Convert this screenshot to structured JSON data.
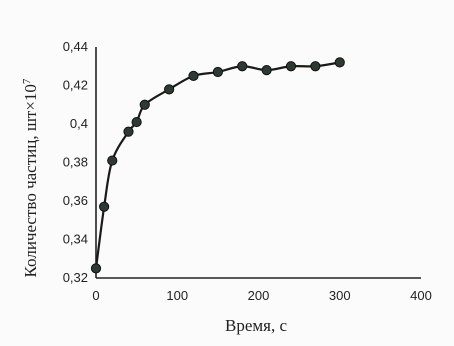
{
  "chart_data": {
    "type": "line",
    "title": "",
    "xlabel": "Время, с",
    "ylabel": "Количество частиц, шт×10",
    "ylabel_superscript": "7",
    "xlim": [
      0,
      400
    ],
    "ylim": [
      0.32,
      0.44
    ],
    "x_ticks": [
      0,
      100,
      200,
      300,
      400
    ],
    "y_ticks": [
      0.32,
      0.34,
      0.36,
      0.38,
      0.4,
      0.42,
      0.44
    ],
    "x_tick_labels": [
      "0",
      "100",
      "200",
      "300",
      "400"
    ],
    "y_tick_labels": [
      "0,32",
      "0,34",
      "0,36",
      "0,38",
      "0,4",
      "0,42",
      "0,44"
    ],
    "grid": false,
    "series": [
      {
        "marker_color": "#2c3a33",
        "x": [
          0,
          10,
          20,
          40,
          50,
          60,
          90,
          120,
          150,
          180,
          210,
          240,
          270,
          300
        ],
        "y": [
          0.325,
          0.357,
          0.381,
          0.396,
          0.401,
          0.41,
          0.418,
          0.425,
          0.427,
          0.43,
          0.428,
          0.43,
          0.43,
          0.432
        ]
      }
    ]
  }
}
